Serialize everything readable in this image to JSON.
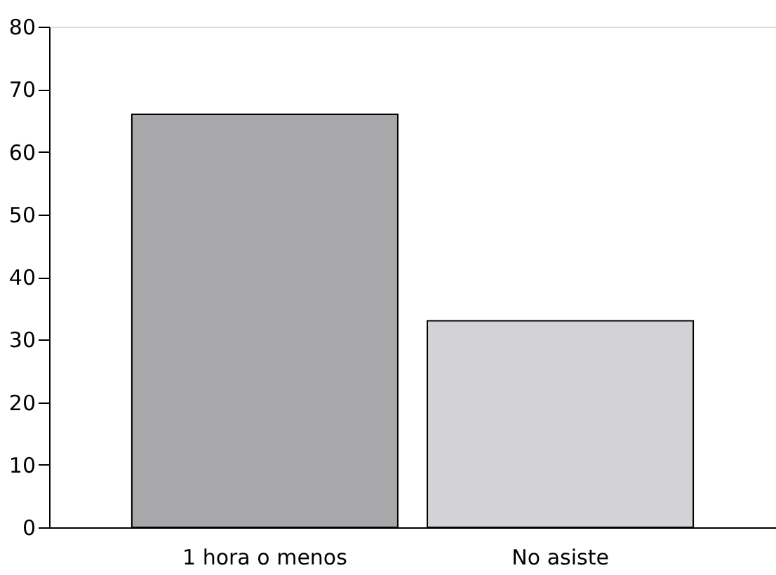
{
  "chart_data": {
    "type": "bar",
    "categories": [
      "1 hora o menos",
      "No asiste"
    ],
    "values": [
      66,
      33
    ],
    "colors": [
      "#a8a8ab",
      "#d3d3d5"
    ],
    "ylim": [
      0,
      80
    ],
    "yticks": [
      0,
      10,
      20,
      30,
      40,
      50,
      60,
      70,
      80
    ],
    "grid": false
  }
}
